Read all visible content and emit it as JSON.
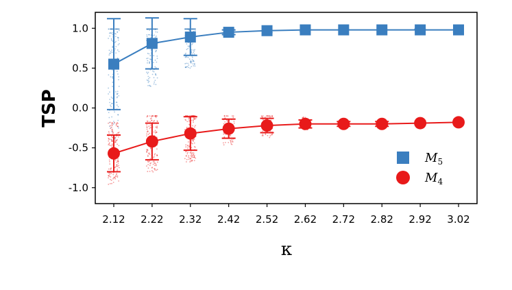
{
  "chart_data": {
    "type": "scatter",
    "xlabel": "κ",
    "ylabel": "TSP",
    "ylim": [
      -1.2,
      1.2
    ],
    "yticks": [
      -1.0,
      -0.5,
      0.0,
      0.5,
      1.0
    ],
    "ytick_labels": [
      "-1.0",
      "-0.5",
      "0.0",
      "0.5",
      "1.0"
    ],
    "categories": [
      "2.12",
      "2.22",
      "2.32",
      "2.42",
      "2.52",
      "2.62",
      "2.72",
      "2.82",
      "2.92",
      "3.02"
    ],
    "legend_position": "lower-right",
    "grid": false,
    "series": [
      {
        "name": "M",
        "subscript": "5",
        "color": "#3a7ebf",
        "marker": "square",
        "mean": [
          0.55,
          0.81,
          0.89,
          0.95,
          0.97,
          0.98,
          0.98,
          0.98,
          0.98,
          0.98
        ],
        "err": [
          0.57,
          0.32,
          0.23,
          0.03,
          0.02,
          0.01,
          0.01,
          0.01,
          0.01,
          0.01
        ]
      },
      {
        "name": "M",
        "subscript": "4",
        "color": "#e81a1a",
        "marker": "circle",
        "mean": [
          -0.57,
          -0.42,
          -0.32,
          -0.26,
          -0.22,
          -0.2,
          -0.2,
          -0.2,
          -0.19,
          -0.18
        ],
        "err": [
          0.23,
          0.23,
          0.21,
          0.12,
          0.09,
          0.05,
          0.03,
          0.03,
          0.02,
          0.02
        ]
      }
    ]
  }
}
